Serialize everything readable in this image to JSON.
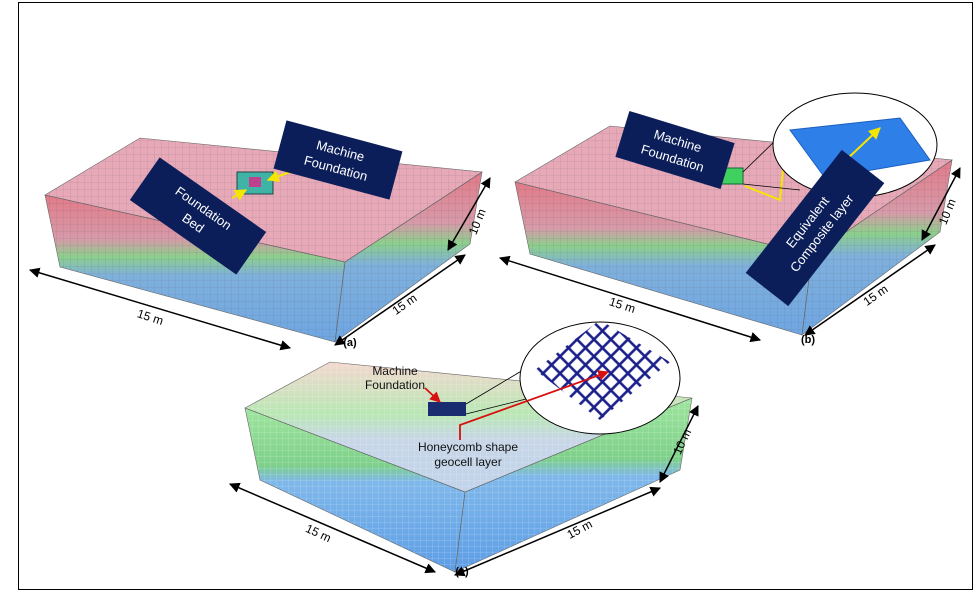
{
  "figure": {
    "panels": [
      {
        "label": "(a)",
        "callouts": [
          {
            "lines": [
              "Machine",
              "Foundation"
            ]
          },
          {
            "lines": [
              "Foundation",
              "Bed"
            ]
          }
        ],
        "dimensions": [
          "10 m",
          "15 m",
          "15 m"
        ]
      },
      {
        "label": "(b)",
        "callouts": [
          {
            "lines": [
              "Machine",
              "Foundation"
            ]
          },
          {
            "lines": [
              "Equivalent",
              "Composite layer"
            ]
          }
        ],
        "dimensions": [
          "10 m",
          "15 m",
          "15 m"
        ]
      },
      {
        "label": "(c)",
        "callouts": [
          {
            "lines": [
              "Machine",
              "Foundation"
            ]
          },
          {
            "lines": [
              "Honeycomb shape",
              "geocell layer"
            ]
          }
        ],
        "dimensions": [
          "10 m",
          "15 m",
          "15 m"
        ]
      }
    ]
  }
}
